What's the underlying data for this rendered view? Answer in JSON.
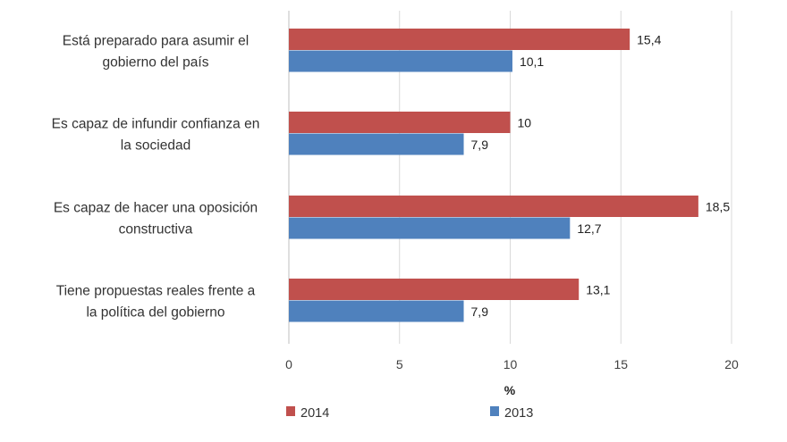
{
  "chart_data": {
    "type": "bar",
    "orientation": "horizontal",
    "categories": [
      [
        "Está preparado para asumir el",
        "gobierno del país"
      ],
      [
        "Es capaz de infundir confianza en",
        "la sociedad"
      ],
      [
        "Es capaz de hacer una oposición",
        "constructiva"
      ],
      [
        "Tiene propuestas reales frente a",
        "la política del gobierno"
      ]
    ],
    "series": [
      {
        "name": "2014",
        "color": "#c0504d",
        "values": [
          15.4,
          10,
          18.5,
          13.1
        ],
        "labels": [
          "15,4",
          "10",
          "18,5",
          "13,1"
        ]
      },
      {
        "name": "2013",
        "color": "#4f81bd",
        "values": [
          10.1,
          7.9,
          12.7,
          7.9
        ],
        "labels": [
          "10,1",
          "7,9",
          "12,7",
          "7,9"
        ]
      }
    ],
    "xlabel": "%",
    "xlim": [
      0,
      20
    ],
    "xticks": [
      "0",
      "5",
      "10",
      "15",
      "20"
    ],
    "grid": true,
    "legend": "bottom"
  }
}
